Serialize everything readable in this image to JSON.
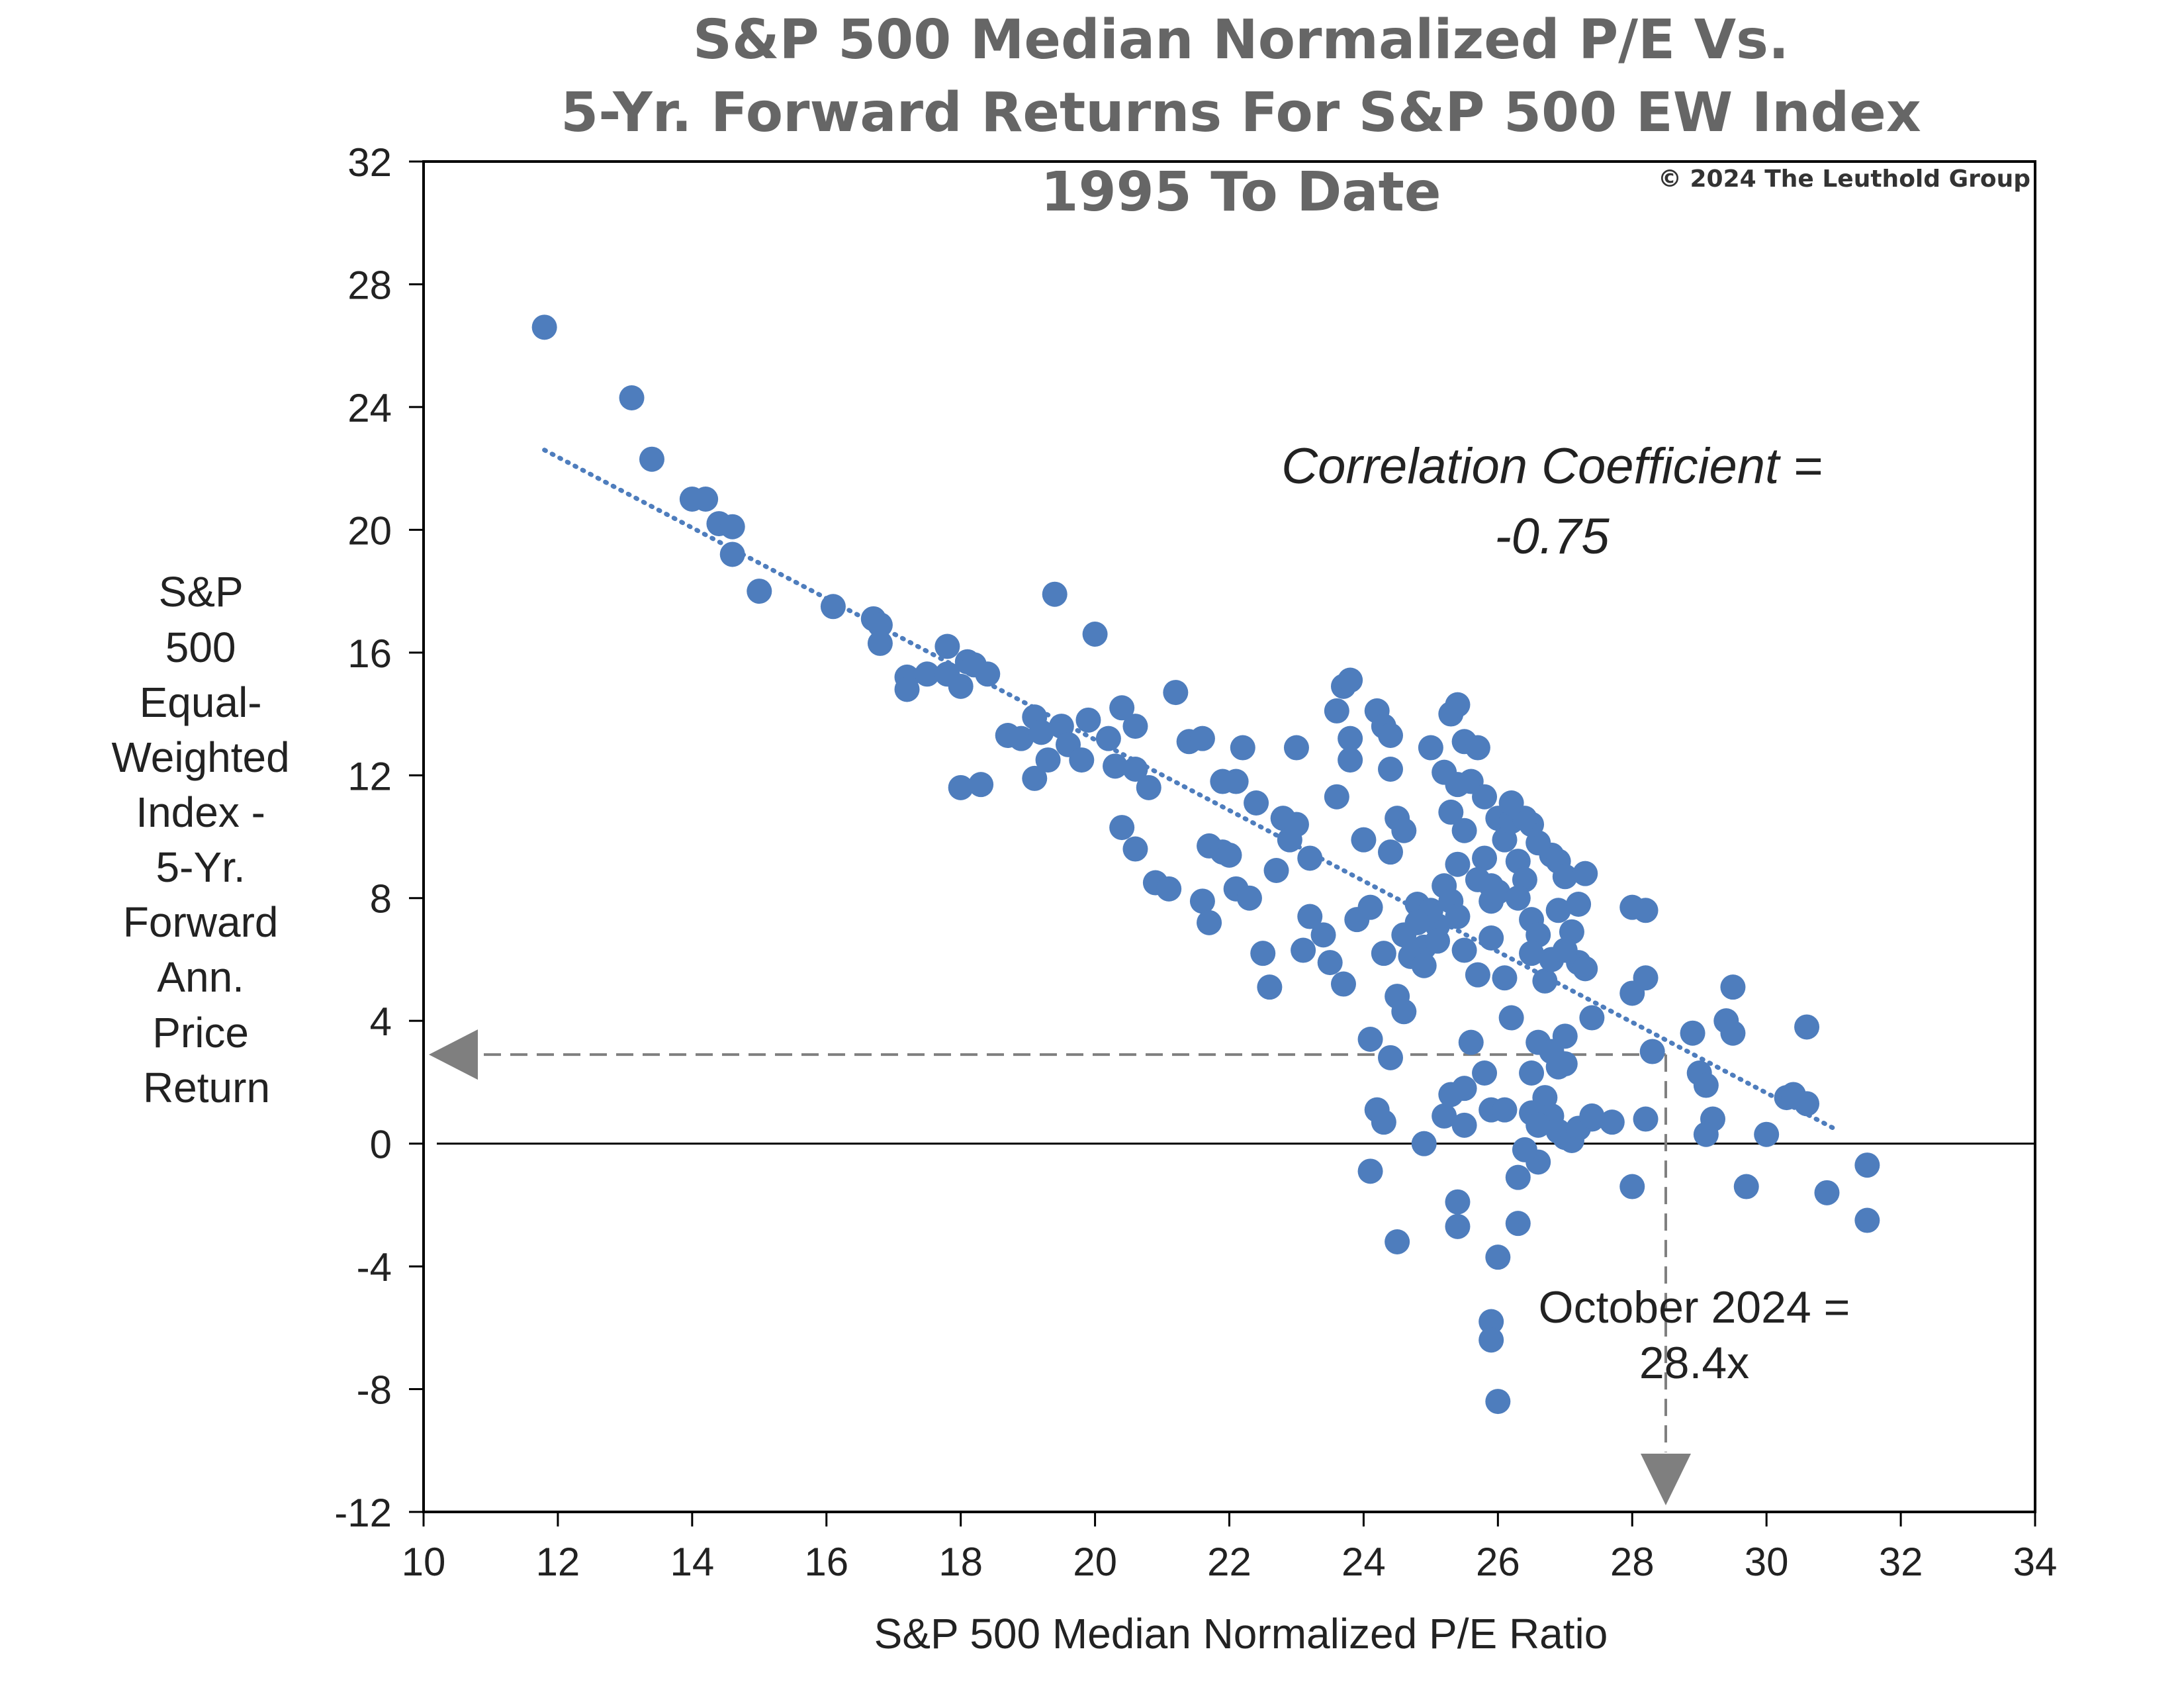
{
  "chart_data": {
    "type": "scatter",
    "title_lines": [
      "S&P 500 Median Normalized P/E Vs.",
      "5-Yr. Forward Returns For S&P 500 EW Index",
      "1995 To Date"
    ],
    "copyright": "© 2024 The Leuthold Group",
    "xlabel": "S&P 500 Median Normalized P/E Ratio",
    "ylabel_lines": [
      "S&P",
      "500",
      "Equal-",
      "Weighted",
      "Index -",
      "5-Yr.",
      "Forward",
      "Ann.",
      "Price",
      "Return"
    ],
    "xlim": [
      10,
      34
    ],
    "ylim": [
      -12,
      32
    ],
    "x_ticks": [
      10,
      12,
      14,
      16,
      18,
      20,
      22,
      24,
      26,
      28,
      30,
      32,
      34
    ],
    "y_ticks": [
      32,
      28,
      24,
      20,
      16,
      12,
      8,
      4,
      0,
      -4,
      -8,
      -12
    ],
    "correlation_text_lines": [
      "Correlation Coefficient =",
      "-0.75"
    ],
    "current_annotation_lines": [
      "October 2024 =",
      "28.4x"
    ],
    "current_value": {
      "x": 28.5,
      "y": 2.9
    },
    "trendline": {
      "style": "dotted",
      "x_start": 11.8,
      "y_start": 22.6,
      "x_end": 31.0,
      "y_end": 0.5
    },
    "colors": {
      "points": "#4e7dbd",
      "trendline": "#4e7dbd",
      "reference_arrow": "#7f7f7f",
      "axis": "#000000",
      "title": "#666666"
    },
    "points": [
      [
        11.8,
        26.6
      ],
      [
        13.1,
        24.3
      ],
      [
        13.4,
        22.3
      ],
      [
        14.0,
        21.0
      ],
      [
        14.2,
        21.0
      ],
      [
        14.4,
        20.2
      ],
      [
        14.6,
        20.1
      ],
      [
        14.6,
        19.2
      ],
      [
        15.0,
        18.0
      ],
      [
        16.1,
        17.5
      ],
      [
        16.7,
        17.1
      ],
      [
        16.8,
        16.9
      ],
      [
        16.8,
        16.3
      ],
      [
        17.2,
        15.2
      ],
      [
        17.2,
        14.8
      ],
      [
        17.5,
        15.3
      ],
      [
        17.8,
        16.2
      ],
      [
        17.8,
        15.3
      ],
      [
        18.0,
        14.9
      ],
      [
        18.1,
        15.7
      ],
      [
        18.2,
        15.6
      ],
      [
        18.4,
        15.3
      ],
      [
        18.0,
        11.6
      ],
      [
        18.3,
        11.7
      ],
      [
        18.7,
        13.3
      ],
      [
        18.9,
        13.2
      ],
      [
        19.1,
        13.9
      ],
      [
        19.2,
        13.4
      ],
      [
        19.1,
        11.9
      ],
      [
        19.3,
        12.5
      ],
      [
        19.4,
        17.9
      ],
      [
        19.5,
        13.6
      ],
      [
        19.6,
        13.0
      ],
      [
        19.8,
        12.5
      ],
      [
        20.0,
        16.6
      ],
      [
        19.9,
        13.8
      ],
      [
        20.2,
        13.2
      ],
      [
        20.3,
        12.3
      ],
      [
        20.4,
        14.2
      ],
      [
        20.6,
        13.6
      ],
      [
        20.6,
        12.2
      ],
      [
        20.8,
        11.6
      ],
      [
        20.4,
        10.3
      ],
      [
        20.6,
        9.6
      ],
      [
        20.9,
        8.5
      ],
      [
        21.1,
        8.3
      ],
      [
        21.2,
        14.7
      ],
      [
        21.4,
        13.1
      ],
      [
        21.6,
        13.2
      ],
      [
        21.6,
        7.9
      ],
      [
        21.7,
        7.2
      ],
      [
        21.7,
        9.7
      ],
      [
        21.9,
        9.5
      ],
      [
        22.0,
        9.4
      ],
      [
        21.9,
        11.8
      ],
      [
        22.1,
        11.8
      ],
      [
        22.2,
        12.9
      ],
      [
        22.1,
        8.3
      ],
      [
        22.3,
        8.0
      ],
      [
        22.4,
        11.1
      ],
      [
        22.5,
        6.2
      ],
      [
        22.6,
        5.1
      ],
      [
        22.7,
        8.9
      ],
      [
        22.8,
        10.6
      ],
      [
        22.9,
        9.9
      ],
      [
        23.0,
        12.9
      ],
      [
        23.0,
        10.4
      ],
      [
        23.1,
        6.3
      ],
      [
        23.2,
        9.3
      ],
      [
        23.2,
        7.4
      ],
      [
        23.4,
        6.8
      ],
      [
        23.5,
        5.9
      ],
      [
        23.6,
        11.3
      ],
      [
        23.6,
        14.1
      ],
      [
        23.7,
        14.9
      ],
      [
        23.8,
        15.1
      ],
      [
        23.8,
        13.2
      ],
      [
        23.8,
        12.5
      ],
      [
        23.7,
        5.2
      ],
      [
        23.9,
        7.3
      ],
      [
        24.0,
        9.9
      ],
      [
        24.1,
        7.7
      ],
      [
        24.2,
        14.1
      ],
      [
        24.3,
        13.6
      ],
      [
        24.4,
        13.3
      ],
      [
        24.4,
        12.2
      ],
      [
        24.5,
        10.6
      ],
      [
        24.6,
        10.2
      ],
      [
        24.4,
        9.5
      ],
      [
        24.3,
        6.2
      ],
      [
        24.5,
        4.8
      ],
      [
        24.6,
        4.3
      ],
      [
        24.1,
        3.4
      ],
      [
        24.4,
        2.8
      ],
      [
        24.2,
        1.1
      ],
      [
        24.3,
        0.7
      ],
      [
        24.1,
        -0.9
      ],
      [
        24.5,
        -3.2
      ],
      [
        24.8,
        7.8
      ],
      [
        24.9,
        6.4
      ],
      [
        25.0,
        12.9
      ],
      [
        25.1,
        7.1
      ],
      [
        25.2,
        12.1
      ],
      [
        25.3,
        10.8
      ],
      [
        25.3,
        14.0
      ],
      [
        25.4,
        14.3
      ],
      [
        25.4,
        11.7
      ],
      [
        25.5,
        13.1
      ],
      [
        25.5,
        10.2
      ],
      [
        25.6,
        11.8
      ],
      [
        25.7,
        12.9
      ],
      [
        25.8,
        11.3
      ],
      [
        25.8,
        9.3
      ],
      [
        25.9,
        8.4
      ],
      [
        26.0,
        10.6
      ],
      [
        26.1,
        9.9
      ],
      [
        26.2,
        10.5
      ],
      [
        26.3,
        9.2
      ],
      [
        26.4,
        8.6
      ],
      [
        26.5,
        7.3
      ],
      [
        26.6,
        6.8
      ],
      [
        26.7,
        5.3
      ],
      [
        26.8,
        9.4
      ],
      [
        26.9,
        9.2
      ],
      [
        27.0,
        8.7
      ],
      [
        27.1,
        6.9
      ],
      [
        27.2,
        5.9
      ],
      [
        27.3,
        5.7
      ],
      [
        27.0,
        3.5
      ],
      [
        26.9,
        2.5
      ],
      [
        26.7,
        1.5
      ],
      [
        26.8,
        0.9
      ],
      [
        26.9,
        0.4
      ],
      [
        27.0,
        0.2
      ],
      [
        27.1,
        0.1
      ],
      [
        26.6,
        -0.6
      ],
      [
        26.4,
        -0.2
      ],
      [
        26.3,
        -1.1
      ],
      [
        26.3,
        -2.6
      ],
      [
        26.0,
        -3.7
      ],
      [
        25.9,
        -5.8
      ],
      [
        25.9,
        -6.4
      ],
      [
        26.0,
        -8.4
      ],
      [
        25.4,
        -1.9
      ],
      [
        25.4,
        -2.7
      ],
      [
        25.5,
        0.6
      ],
      [
        25.6,
        3.3
      ],
      [
        25.8,
        2.3
      ],
      [
        25.9,
        1.1
      ],
      [
        26.2,
        4.1
      ],
      [
        26.1,
        5.4
      ],
      [
        25.7,
        5.5
      ],
      [
        25.5,
        6.3
      ],
      [
        25.9,
        6.7
      ],
      [
        24.9,
        -0.0
      ],
      [
        25.2,
        0.9
      ],
      [
        25.3,
        1.6
      ],
      [
        25.5,
        1.8
      ],
      [
        27.4,
        4.1
      ],
      [
        27.4,
        0.8
      ],
      [
        27.7,
        0.7
      ],
      [
        28.0,
        4.9
      ],
      [
        28.0,
        7.7
      ],
      [
        28.2,
        7.6
      ],
      [
        28.2,
        5.4
      ],
      [
        28.3,
        3.0
      ],
      [
        28.2,
        0.8
      ],
      [
        28.0,
        -1.4
      ],
      [
        28.9,
        3.6
      ],
      [
        29.0,
        2.3
      ],
      [
        29.1,
        1.9
      ],
      [
        29.2,
        0.8
      ],
      [
        29.1,
        0.3
      ],
      [
        29.4,
        4.0
      ],
      [
        29.5,
        3.6
      ],
      [
        29.5,
        5.1
      ],
      [
        29.7,
        -1.4
      ],
      [
        30.0,
        0.3
      ],
      [
        30.3,
        1.5
      ],
      [
        30.4,
        1.6
      ],
      [
        30.6,
        1.3
      ],
      [
        30.6,
        3.8
      ],
      [
        30.9,
        -1.6
      ],
      [
        31.5,
        -0.7
      ],
      [
        31.5,
        -2.5
      ],
      [
        26.6,
        3.3
      ],
      [
        26.8,
        3.0
      ],
      [
        27.0,
        2.6
      ],
      [
        26.5,
        2.3
      ],
      [
        26.1,
        1.1
      ],
      [
        26.5,
        1.0
      ],
      [
        26.6,
        0.6
      ],
      [
        27.2,
        0.5
      ],
      [
        27.4,
        0.9
      ],
      [
        25.9,
        7.9
      ],
      [
        26.0,
        8.2
      ],
      [
        26.3,
        8.0
      ],
      [
        25.7,
        8.6
      ],
      [
        25.4,
        9.1
      ],
      [
        25.2,
        8.4
      ],
      [
        25.0,
        7.6
      ],
      [
        24.8,
        7.2
      ],
      [
        24.6,
        6.8
      ],
      [
        24.7,
        6.1
      ],
      [
        24.9,
        5.8
      ],
      [
        25.1,
        6.6
      ],
      [
        25.3,
        7.9
      ],
      [
        25.4,
        7.4
      ],
      [
        26.5,
        6.2
      ],
      [
        26.8,
        6.0
      ],
      [
        27.0,
        6.3
      ],
      [
        26.9,
        7.6
      ],
      [
        27.2,
        7.8
      ],
      [
        27.3,
        8.8
      ],
      [
        26.6,
        9.8
      ],
      [
        26.5,
        10.4
      ],
      [
        26.4,
        10.6
      ],
      [
        26.2,
        11.1
      ]
    ]
  }
}
